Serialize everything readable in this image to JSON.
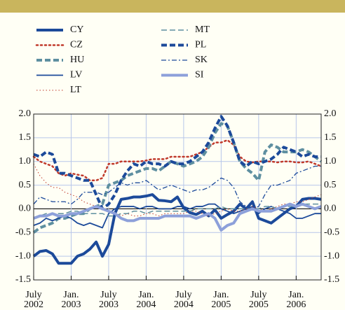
{
  "chart_data": {
    "type": "line",
    "x": [
      "2002-07",
      "2002-08",
      "2002-09",
      "2002-10",
      "2002-11",
      "2002-12",
      "2003-01",
      "2003-02",
      "2003-03",
      "2003-04",
      "2003-05",
      "2003-06",
      "2003-07",
      "2003-08",
      "2003-09",
      "2003-10",
      "2003-11",
      "2003-12",
      "2004-01",
      "2004-02",
      "2004-03",
      "2004-04",
      "2004-05",
      "2004-06",
      "2004-07",
      "2004-08",
      "2004-09",
      "2004-10",
      "2004-11",
      "2004-12",
      "2005-01",
      "2005-02",
      "2005-03",
      "2005-04",
      "2005-05",
      "2005-06",
      "2005-07",
      "2005-08",
      "2005-09",
      "2005-10",
      "2005-11",
      "2005-12",
      "2006-01",
      "2006-02",
      "2006-03",
      "2006-04",
      "2006-05"
    ],
    "xlim": [
      "2002-07",
      "2006-05"
    ],
    "xticks": [
      {
        "value": "2002-07",
        "label": [
          "July",
          "2002"
        ]
      },
      {
        "value": "2003-01",
        "label": [
          "Jan.",
          "2003"
        ]
      },
      {
        "value": "2003-07",
        "label": [
          "July",
          "2003"
        ]
      },
      {
        "value": "2004-01",
        "label": [
          "Jan.",
          "2004"
        ]
      },
      {
        "value": "2004-07",
        "label": [
          "July",
          "2004"
        ]
      },
      {
        "value": "2005-01",
        "label": [
          "Jan.",
          "2005"
        ]
      },
      {
        "value": "2005-07",
        "label": [
          "July",
          "2005"
        ]
      },
      {
        "value": "2006-01",
        "label": [
          "Jan.",
          "2006"
        ]
      }
    ],
    "ylim": [
      -1.5,
      2.0
    ],
    "yticks": [
      {
        "value": 2.0,
        "label": "2.0"
      },
      1.5,
      {
        "value": 1.0,
        "label": "1.0"
      },
      0.5,
      {
        "value": 0.0,
        "label": "0.0"
      },
      -0.5,
      {
        "value": -1.0,
        "label": "-1.0"
      },
      -1.5
    ],
    "grid": true,
    "series": [
      {
        "name": "CY",
        "color": "#1c4a9a",
        "style": "solid",
        "linewidth": 4,
        "values": [
          -1.0,
          -0.9,
          -0.88,
          -0.95,
          -1.15,
          -1.15,
          -1.15,
          -1.0,
          -0.95,
          -0.85,
          -0.7,
          -1.0,
          -0.75,
          -0.1,
          0.2,
          0.22,
          0.25,
          0.25,
          0.27,
          0.3,
          0.18,
          0.17,
          0.15,
          0.25,
          0.02,
          -0.08,
          -0.12,
          -0.05,
          -0.15,
          -0.02,
          -0.2,
          -0.12,
          -0.05,
          0.1,
          0.0,
          0.15,
          -0.2,
          -0.25,
          -0.3,
          -0.2,
          -0.1,
          0.0,
          0.05,
          0.2,
          0.22,
          0.22,
          0.2
        ]
      },
      {
        "name": "CZ",
        "color": "#c0392b",
        "style": "dotted",
        "linewidth": 2.5,
        "values": [
          1.1,
          1.0,
          0.95,
          0.9,
          0.75,
          0.7,
          0.75,
          0.72,
          0.7,
          0.6,
          0.6,
          0.65,
          0.95,
          0.95,
          1.0,
          1.0,
          1.0,
          1.0,
          1.02,
          1.05,
          1.05,
          1.05,
          1.1,
          1.1,
          1.1,
          1.1,
          1.15,
          1.2,
          1.3,
          1.4,
          1.4,
          1.45,
          1.35,
          1.1,
          1.0,
          0.98,
          1.0,
          1.0,
          1.0,
          0.98,
          1.0,
          1.0,
          0.98,
          0.98,
          1.0,
          0.95,
          0.9
        ]
      },
      {
        "name": "HU",
        "color": "#5e8fa0",
        "style": "dashed",
        "linewidth": 4,
        "values": [
          -0.5,
          -0.4,
          -0.35,
          -0.3,
          -0.2,
          -0.2,
          -0.15,
          -0.1,
          -0.1,
          0.0,
          0.05,
          0.1,
          0.5,
          0.55,
          0.6,
          0.7,
          0.75,
          0.8,
          0.85,
          0.85,
          0.8,
          0.9,
          1.0,
          0.95,
          0.9,
          0.95,
          1.0,
          1.1,
          1.3,
          1.6,
          1.8,
          1.75,
          1.4,
          1.0,
          0.85,
          0.75,
          0.6,
          1.2,
          1.35,
          1.3,
          1.2,
          1.2,
          1.2,
          1.25,
          1.2,
          1.1,
          1.0
        ]
      },
      {
        "name": "LV",
        "color": "#1c4a9a",
        "style": "solid",
        "linewidth": 1.8,
        "values": [
          -0.35,
          -0.3,
          -0.2,
          -0.25,
          -0.2,
          -0.15,
          -0.2,
          -0.3,
          -0.35,
          -0.3,
          -0.35,
          -0.4,
          -0.1,
          0.0,
          0.05,
          0.05,
          0.05,
          0.0,
          0.05,
          0.05,
          0.0,
          0.0,
          0.0,
          0.05,
          0.05,
          0.0,
          0.05,
          0.05,
          0.1,
          0.1,
          0.0,
          -0.05,
          -0.1,
          -0.05,
          0.0,
          0.05,
          -0.1,
          0.0,
          0.05,
          0.0,
          -0.05,
          -0.1,
          -0.2,
          -0.2,
          -0.15,
          -0.1,
          -0.1
        ]
      },
      {
        "name": "LT",
        "color": "#c0392b",
        "style": "finedot",
        "linewidth": 1,
        "values": [
          0.95,
          0.7,
          0.55,
          0.45,
          0.45,
          0.35,
          0.3,
          0.25,
          0.15,
          0.1,
          0.05,
          0.0,
          -0.05,
          -0.1,
          -0.15,
          -0.1,
          -0.15,
          -0.15,
          -0.1,
          -0.1,
          -0.15,
          -0.1,
          -0.1,
          -0.1,
          -0.1,
          -0.05,
          -0.05,
          -0.1,
          -0.15,
          -0.1,
          -0.05,
          0.0,
          -0.05,
          -0.05,
          0.0,
          0.05,
          0.0,
          -0.05,
          0.0,
          0.05,
          0.1,
          0.1,
          0.15,
          0.15,
          0.2,
          0.25,
          0.3
        ]
      },
      {
        "name": "MT",
        "color": "#5e8fa0",
        "style": "dashed",
        "linewidth": 1.5,
        "values": [
          -0.2,
          -0.15,
          -0.1,
          -0.1,
          -0.1,
          -0.1,
          -0.05,
          -0.05,
          -0.1,
          -0.1,
          -0.1,
          -0.1,
          -0.15,
          -0.15,
          -0.1,
          -0.1,
          -0.05,
          -0.05,
          -0.1,
          -0.05,
          -0.05,
          -0.05,
          -0.05,
          -0.05,
          -0.05,
          -0.05,
          0.0,
          0.0,
          0.0,
          0.0,
          0.05,
          0.0,
          0.0,
          0.0,
          0.0,
          0.0,
          0.0,
          0.05,
          0.05,
          0.0,
          0.05,
          0.05,
          0.05,
          0.1,
          0.1,
          0.1,
          0.1
        ]
      },
      {
        "name": "PL",
        "color": "#1c4a9a",
        "style": "dashed",
        "linewidth": 4,
        "values": [
          1.15,
          1.1,
          1.2,
          1.15,
          0.75,
          0.75,
          0.7,
          0.65,
          0.6,
          0.6,
          0.3,
          0.0,
          0.1,
          0.3,
          0.6,
          0.8,
          0.95,
          0.9,
          1.0,
          0.95,
          0.95,
          0.9,
          1.0,
          0.95,
          0.95,
          1.0,
          1.1,
          1.2,
          1.4,
          1.7,
          1.95,
          1.75,
          1.4,
          1.0,
          0.9,
          1.0,
          0.95,
          1.0,
          1.05,
          1.15,
          1.3,
          1.25,
          1.2,
          1.1,
          1.15,
          1.1,
          1.1
        ]
      },
      {
        "name": "SK",
        "color": "#1c4a9a",
        "style": "dashdot",
        "linewidth": 1.3,
        "values": [
          0.1,
          0.25,
          0.2,
          0.15,
          0.15,
          0.15,
          0.1,
          0.2,
          0.35,
          0.35,
          0.35,
          0.3,
          0.35,
          0.45,
          0.55,
          0.5,
          0.55,
          0.55,
          0.6,
          0.5,
          0.4,
          0.45,
          0.5,
          0.45,
          0.4,
          0.35,
          0.4,
          0.4,
          0.45,
          0.55,
          0.65,
          0.6,
          0.45,
          0.15,
          0.05,
          0.0,
          0.05,
          0.3,
          0.5,
          0.5,
          0.55,
          0.6,
          0.75,
          0.8,
          0.85,
          0.9,
          0.9
        ]
      },
      {
        "name": "SI",
        "color": "#8da0da",
        "style": "solid",
        "linewidth": 4,
        "values": [
          -0.2,
          -0.15,
          -0.15,
          -0.1,
          -0.15,
          -0.15,
          -0.1,
          -0.1,
          -0.05,
          0.0,
          0.05,
          0.0,
          -0.05,
          -0.1,
          -0.2,
          -0.25,
          -0.25,
          -0.2,
          -0.2,
          -0.2,
          -0.2,
          -0.15,
          -0.15,
          -0.15,
          -0.15,
          -0.15,
          -0.2,
          -0.15,
          -0.1,
          -0.2,
          -0.45,
          -0.35,
          -0.3,
          -0.1,
          -0.05,
          0.0,
          -0.05,
          -0.05,
          -0.05,
          0.0,
          0.05,
          0.1,
          0.05,
          0.1,
          0.05,
          0.0,
          0.05
        ]
      }
    ]
  }
}
